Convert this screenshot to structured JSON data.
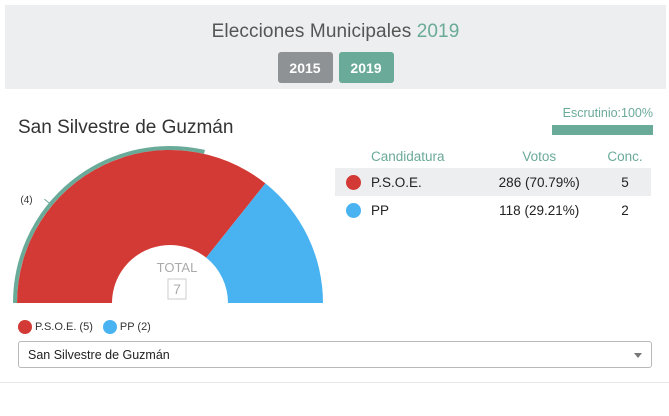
{
  "header": {
    "title_prefix": "Elecciones Municipales",
    "title_year": "2019",
    "years": [
      {
        "label": "2015",
        "active": false
      },
      {
        "label": "2019",
        "active": true
      }
    ]
  },
  "municipality": {
    "name": "San Silvestre de Guzmán"
  },
  "escrutinio": {
    "label": "Escrutinio:100%",
    "percent": 100
  },
  "chart_data": {
    "type": "pie",
    "categories": [
      "P.S.O.E.",
      "PP"
    ],
    "values": [
      5,
      2
    ],
    "colors": [
      "#d33a35",
      "#49b3f2"
    ],
    "total_label": "TOTAL",
    "total_value": "7",
    "majority_label": "(4)",
    "majority_seats": 4,
    "majority_color": "#6aaa99"
  },
  "table": {
    "headers": [
      "Candidatura",
      "Votos",
      "Conc."
    ],
    "rows": [
      {
        "name": "P.S.O.E.",
        "votes": "286 (70.79%)",
        "seats": "5",
        "color": "#d33a35"
      },
      {
        "name": "PP",
        "votes": "118 (29.21%)",
        "seats": "2",
        "color": "#49b3f2"
      }
    ]
  },
  "legend": [
    {
      "label": "P.S.O.E. (5)",
      "color": "#d33a35"
    },
    {
      "label": "PP (2)",
      "color": "#49b3f2"
    }
  ],
  "select": {
    "value": "San Silvestre de Guzmán"
  }
}
